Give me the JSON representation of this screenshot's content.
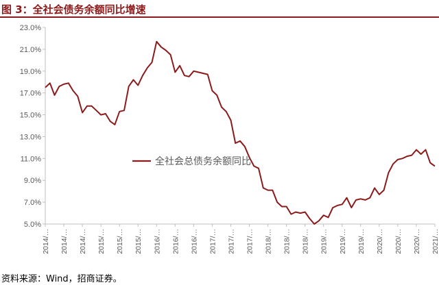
{
  "figure": {
    "title": "图 3：全社会债务余额同比增速",
    "source": "资料来源：Wind，招商证券。"
  },
  "colors": {
    "accent": "#8b1a1a",
    "line": "#8b1a1a",
    "axis": "#bfbfbf",
    "text": "#595959"
  },
  "chart_data": {
    "type": "line",
    "title": "图 3：全社会债务余额同比增速",
    "xlabel": "",
    "ylabel": "",
    "ylim": [
      5.0,
      23.0
    ],
    "y_ticks": [
      "5.0%",
      "7.0%",
      "9.0%",
      "11.0%",
      "13.0%",
      "15.0%",
      "17.0%",
      "19.0%",
      "21.0%",
      "23.0%"
    ],
    "x_tick_labels": [
      "2014/…",
      "2014/…",
      "2014/…",
      "2015/…",
      "2015/…",
      "2015/…",
      "2016/…",
      "2016/…",
      "2016/…",
      "2017/…",
      "2017/…",
      "2017/…",
      "2018/…",
      "2018/…",
      "2018/…",
      "2019/…",
      "2019/…",
      "2019/…",
      "2020/…",
      "2020/…",
      "2020/…",
      "2021/…"
    ],
    "grid": false,
    "legend_position": "center-left",
    "series": [
      {
        "name": "全社会总债务余额同比",
        "values": [
          17.5,
          17.9,
          16.8,
          17.6,
          17.8,
          17.9,
          17.2,
          16.7,
          15.2,
          15.8,
          15.8,
          15.4,
          15.0,
          15.1,
          14.4,
          14.1,
          15.3,
          15.4,
          17.6,
          18.2,
          17.7,
          18.6,
          19.3,
          19.8,
          21.7,
          21.2,
          20.9,
          20.5,
          18.9,
          19.5,
          18.6,
          18.5,
          19.0,
          18.9,
          18.8,
          18.7,
          17.2,
          16.8,
          15.7,
          15.3,
          14.5,
          12.4,
          12.6,
          12.1,
          11.1,
          10.3,
          10.1,
          8.3,
          8.1,
          8.1,
          7.0,
          6.6,
          6.6,
          5.9,
          6.1,
          6.0,
          6.1,
          5.5,
          5.0,
          5.3,
          5.8,
          5.6,
          6.5,
          6.7,
          6.8,
          7.4,
          6.5,
          7.2,
          7.3,
          7.2,
          7.4,
          8.3,
          7.7,
          8.1,
          9.7,
          10.5,
          10.9,
          11.0,
          11.2,
          11.3,
          11.8,
          11.4,
          11.8,
          10.6,
          10.3
        ]
      }
    ]
  }
}
